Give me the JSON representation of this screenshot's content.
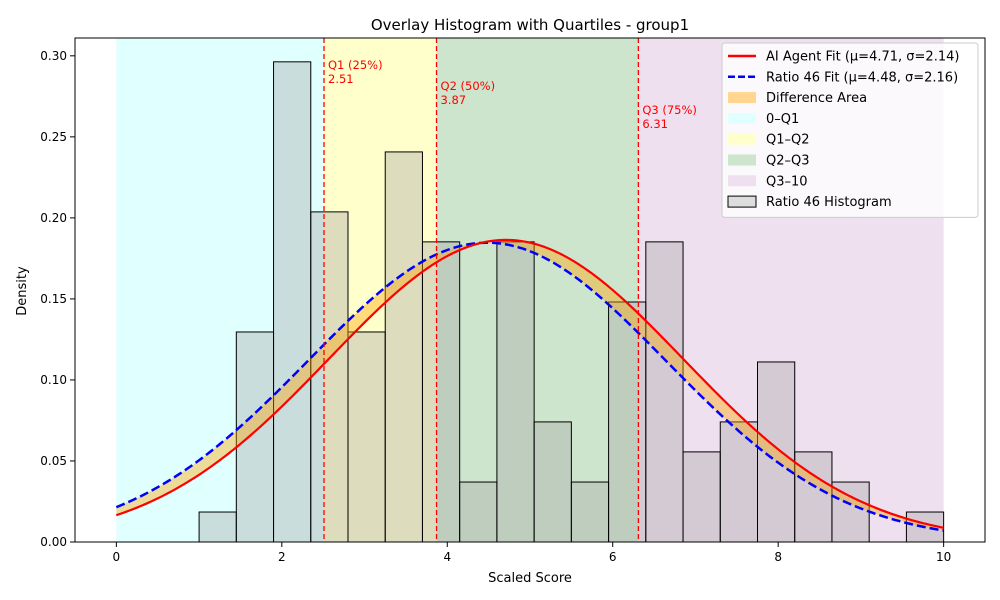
{
  "chart_data": {
    "type": "histogram",
    "title": "Overlay Histogram with Quartiles - group1",
    "xlabel": "Scaled Score",
    "ylabel": "Density",
    "xlim": [
      -0.5,
      10.5
    ],
    "ylim": [
      0,
      0.311
    ],
    "xticks": [
      0,
      2,
      4,
      6,
      8,
      10
    ],
    "yticks": [
      0.0,
      0.05,
      0.1,
      0.15,
      0.2,
      0.25,
      0.3
    ],
    "xtick_labels": [
      "0",
      "2",
      "4",
      "6",
      "8",
      "10"
    ],
    "ytick_labels": [
      "0.00",
      "0.05",
      "0.10",
      "0.15",
      "0.20",
      "0.25",
      "0.30"
    ],
    "regions": [
      {
        "name": "0–Q1",
        "from": 0,
        "to": 2.51,
        "color": "#e0ffff"
      },
      {
        "name": "Q1–Q2",
        "from": 2.51,
        "to": 3.87,
        "color": "#ffffcc"
      },
      {
        "name": "Q2–Q3",
        "from": 3.87,
        "to": 6.31,
        "color": "#cde5cd"
      },
      {
        "name": "Q3–10",
        "from": 6.31,
        "to": 10,
        "color": "#eee0ef"
      }
    ],
    "quartiles": [
      {
        "name": "Q1 (25%)",
        "value": 2.51,
        "label": "2.51"
      },
      {
        "name": "Q2 (50%)",
        "value": 3.87,
        "label": "3.87"
      },
      {
        "name": "Q3 (75%)",
        "value": 6.31,
        "label": "6.31"
      }
    ],
    "histogram": {
      "name": "Ratio 46 Histogram",
      "bin_edges": [
        1.0,
        1.45,
        1.9,
        2.35,
        2.8,
        3.25,
        3.7,
        4.15,
        4.6,
        5.05,
        5.5,
        5.95,
        6.4,
        6.85,
        7.3,
        7.75,
        8.2,
        8.65,
        9.1,
        9.55,
        10.0
      ],
      "densities": [
        0.0185,
        0.1296,
        0.2963,
        0.2037,
        0.1296,
        0.2407,
        0.1852,
        0.037,
        0.1852,
        0.0741,
        0.037,
        0.1481,
        0.1852,
        0.0556,
        0.0741,
        0.1111,
        0.0556,
        0.037,
        0.0,
        0.0185
      ]
    },
    "series": [
      {
        "name": "AI Agent Fit (μ=4.71, σ=2.14)",
        "type": "normal_pdf",
        "mu": 4.71,
        "sigma": 2.14,
        "color": "#ff0000",
        "style": "solid"
      },
      {
        "name": "Ratio 46 Fit (μ=4.48, σ=2.16)",
        "type": "normal_pdf",
        "mu": 4.48,
        "sigma": 2.16,
        "color": "#0000ff",
        "style": "dashed"
      }
    ],
    "difference_area": {
      "name": "Difference Area",
      "color": "#ffa500"
    },
    "legend": {
      "position": "top-right",
      "entries": [
        {
          "label": "AI Agent Fit (μ=4.71, σ=2.14)",
          "kind": "line",
          "color": "#ff0000",
          "style": "solid"
        },
        {
          "label": "Ratio 46 Fit (μ=4.48, σ=2.16)",
          "kind": "line",
          "color": "#0000ff",
          "style": "dashed"
        },
        {
          "label": "Difference Area",
          "kind": "patch",
          "color": "#ffd590"
        },
        {
          "label": "0–Q1",
          "kind": "patch",
          "color": "#e0ffff"
        },
        {
          "label": "Q1–Q2",
          "kind": "patch",
          "color": "#ffffcc"
        },
        {
          "label": "Q2–Q3",
          "kind": "patch",
          "color": "#cde5cd"
        },
        {
          "label": "Q3–10",
          "kind": "patch",
          "color": "#eee0ef"
        },
        {
          "label": "Ratio 46 Histogram",
          "kind": "patch",
          "color": "#dddddd"
        }
      ]
    }
  }
}
